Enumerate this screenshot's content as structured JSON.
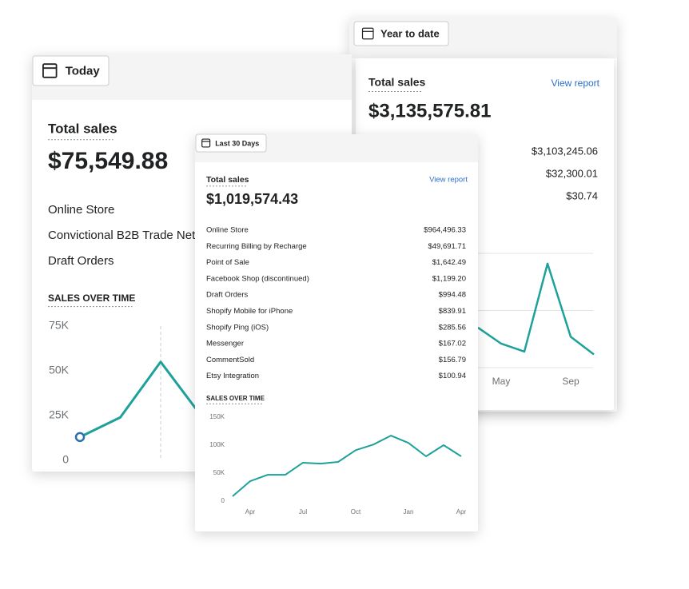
{
  "cards": [
    {
      "range": "Today",
      "title": "Total sales",
      "total": "$75,549.88",
      "rows": [
        {
          "label": "Online Store"
        },
        {
          "label": "Convictional B2B Trade Net"
        },
        {
          "label": "Draft Orders"
        }
      ],
      "chart": {
        "type": "line",
        "title": "SALES OVER TIME",
        "values": [
          13000,
          24000,
          55000,
          25000
        ],
        "color": "#1fa19b",
        "ylim": [
          0,
          75000
        ],
        "yticks": [
          0,
          {
            "value": 25000,
            "label": "25K"
          },
          {
            "value": 50000,
            "label": "50K"
          },
          {
            "value": 75000,
            "label": "75K"
          }
        ]
      }
    },
    {
      "range": "Year to date",
      "title": "Total sales",
      "link": "View report",
      "total": "$3,135,575.81",
      "rows": [
        {
          "value": "$3,103,245.06"
        },
        {
          "value": "$32,300.01"
        },
        {
          "value": "$30.74"
        }
      ],
      "chart": {
        "type": "line",
        "categories": [
          null,
          "May",
          null,
          null,
          "Sep",
          null
        ],
        "values": [
          0.7,
          0.42,
          0.28,
          1.82,
          0.54,
          0.23
        ],
        "color": "#1fa19b",
        "ylim": [
          0,
          2
        ]
      }
    },
    {
      "range": "Last 30 Days",
      "title": "Total sales",
      "link": "View report",
      "total": "$1,019,574.43",
      "rows": [
        {
          "label": "Online Store",
          "value": "$964,496.33"
        },
        {
          "label": "Recurring Billing by Recharge",
          "value": "$49,691.71"
        },
        {
          "label": "Point of Sale",
          "value": "$1,642.49"
        },
        {
          "label": "Facebook Shop (discontinued)",
          "value": "$1,199.20"
        },
        {
          "label": "Draft Orders",
          "value": "$994.48"
        },
        {
          "label": "Shopify Mobile for iPhone",
          "value": "$839.91"
        },
        {
          "label": "Shopify Ping (iOS)",
          "value": "$285.56"
        },
        {
          "label": "Messenger",
          "value": "$167.02"
        },
        {
          "label": "CommentSold",
          "value": "$156.79"
        },
        {
          "label": "Etsy Integration",
          "value": "$100.94"
        }
      ],
      "chart": {
        "type": "line",
        "title": "SALES OVER TIME",
        "categories": [
          null,
          "Apr",
          null,
          null,
          "Jul",
          null,
          null,
          "Oct",
          null,
          null,
          "Jan",
          null,
          null,
          "Apr"
        ],
        "values": [
          8600,
          35700,
          47000,
          47000,
          68600,
          67000,
          70000,
          91000,
          101000,
          117000,
          104000,
          80000,
          100000,
          80000
        ],
        "color": "#1fa19b",
        "ylim": [
          0,
          150000
        ],
        "yticks": [
          0,
          {
            "value": 50000,
            "label": "50K"
          },
          {
            "value": 100000,
            "label": "100K"
          },
          {
            "value": 150000,
            "label": "150K"
          }
        ]
      }
    }
  ]
}
